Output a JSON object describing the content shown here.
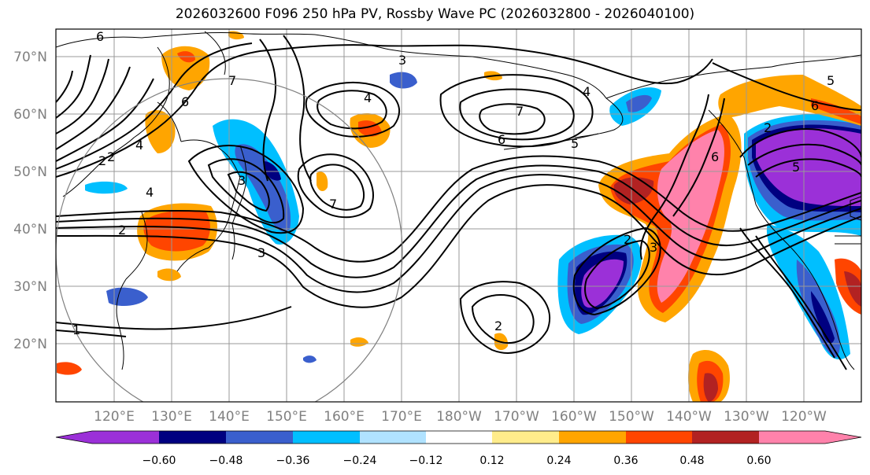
{
  "title": "2026032600 F096 250 hPa PV, Rossby Wave PC (2026032800 - 2026040100)",
  "lat_labels": [
    "70°N",
    "60°N",
    "50°N",
    "40°N",
    "30°N",
    "20°N"
  ],
  "lon_labels": [
    "120°E",
    "130°E",
    "140°E",
    "150°E",
    "160°E",
    "170°E",
    "180°W",
    "170°W",
    "160°W",
    "150°W",
    "140°W",
    "130°W",
    "120°W"
  ],
  "colorbar": {
    "tick_labels": [
      "−0.60",
      "−0.48",
      "−0.36",
      "−0.24",
      "−0.12",
      "0.12",
      "0.24",
      "0.36",
      "0.48",
      "0.60"
    ],
    "colors": [
      "#9b30d8",
      "#000080",
      "#3a5fcd",
      "#00bfff",
      "#b0e2ff",
      "#ffffff",
      "#ffec8b",
      "#ffa500",
      "#ff4500",
      "#b22222",
      "#ff82ab"
    ]
  },
  "contour_labels": [
    "6",
    "7",
    "6",
    "4",
    "6",
    "3",
    "7",
    "4",
    "5",
    "3",
    "6",
    "2",
    "4",
    "2",
    "3",
    "4",
    "2",
    "2",
    "1",
    "7",
    "5",
    "6",
    "5",
    "3",
    "2",
    "2"
  ],
  "colors": {
    "grid": "#999999",
    "coast": "#000000",
    "contour": "#000000"
  }
}
